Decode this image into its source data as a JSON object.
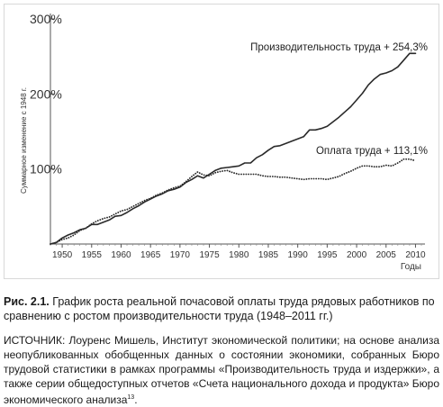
{
  "chart_data": {
    "type": "line",
    "ylabel": "Суммарное изменение с 1948 г.",
    "xlabel": "Годы",
    "xlim": [
      1948,
      2011
    ],
    "ylim": [
      0,
      300
    ],
    "x_ticks": [
      1950,
      1955,
      1960,
      1965,
      1970,
      1975,
      1980,
      1985,
      1990,
      1995,
      2000,
      2005,
      2010
    ],
    "y_ticks": [
      {
        "value": 100,
        "label": "100%"
      },
      {
        "value": 200,
        "label": "200%"
      },
      {
        "value": 300,
        "label": "300%"
      }
    ],
    "grid": false,
    "series": [
      {
        "style": "solid",
        "color": "#2a2a2a",
        "annotation": "Производительность труда + 254,3%",
        "points": [
          [
            1948,
            0
          ],
          [
            1949,
            2
          ],
          [
            1950,
            8
          ],
          [
            1951,
            12
          ],
          [
            1952,
            15
          ],
          [
            1953,
            19
          ],
          [
            1954,
            21
          ],
          [
            1955,
            26
          ],
          [
            1956,
            26
          ],
          [
            1957,
            29
          ],
          [
            1958,
            32
          ],
          [
            1959,
            37
          ],
          [
            1960,
            38
          ],
          [
            1961,
            42
          ],
          [
            1962,
            47
          ],
          [
            1963,
            51
          ],
          [
            1964,
            56
          ],
          [
            1965,
            60
          ],
          [
            1966,
            64
          ],
          [
            1967,
            67
          ],
          [
            1968,
            71
          ],
          [
            1969,
            73
          ],
          [
            1970,
            76
          ],
          [
            1971,
            82
          ],
          [
            1972,
            86
          ],
          [
            1973,
            91
          ],
          [
            1974,
            88
          ],
          [
            1975,
            93
          ],
          [
            1976,
            98
          ],
          [
            1977,
            101
          ],
          [
            1978,
            102
          ],
          [
            1979,
            103
          ],
          [
            1980,
            104
          ],
          [
            1981,
            108
          ],
          [
            1982,
            108
          ],
          [
            1983,
            115
          ],
          [
            1984,
            119
          ],
          [
            1985,
            125
          ],
          [
            1986,
            130
          ],
          [
            1987,
            131
          ],
          [
            1988,
            134
          ],
          [
            1989,
            137
          ],
          [
            1990,
            140
          ],
          [
            1991,
            143
          ],
          [
            1992,
            152
          ],
          [
            1993,
            152
          ],
          [
            1994,
            154
          ],
          [
            1995,
            157
          ],
          [
            1996,
            163
          ],
          [
            1997,
            169
          ],
          [
            1998,
            176
          ],
          [
            1999,
            183
          ],
          [
            2000,
            192
          ],
          [
            2001,
            201
          ],
          [
            2002,
            212
          ],
          [
            2003,
            220
          ],
          [
            2004,
            226
          ],
          [
            2005,
            228
          ],
          [
            2006,
            231
          ],
          [
            2007,
            236
          ],
          [
            2008,
            245
          ],
          [
            2009,
            254
          ],
          [
            2010,
            254
          ]
        ]
      },
      {
        "style": "dotted",
        "color": "#2a2a2a",
        "annotation": "Оплата труда + 113,1%",
        "points": [
          [
            1948,
            0
          ],
          [
            1949,
            2
          ],
          [
            1950,
            6
          ],
          [
            1951,
            8
          ],
          [
            1952,
            12
          ],
          [
            1953,
            18
          ],
          [
            1954,
            21
          ],
          [
            1955,
            27
          ],
          [
            1956,
            31
          ],
          [
            1957,
            34
          ],
          [
            1958,
            36
          ],
          [
            1959,
            40
          ],
          [
            1960,
            44
          ],
          [
            1961,
            46
          ],
          [
            1962,
            50
          ],
          [
            1963,
            54
          ],
          [
            1964,
            58
          ],
          [
            1965,
            61
          ],
          [
            1966,
            65
          ],
          [
            1967,
            68
          ],
          [
            1968,
            72
          ],
          [
            1969,
            75
          ],
          [
            1970,
            77
          ],
          [
            1971,
            83
          ],
          [
            1972,
            90
          ],
          [
            1973,
            96
          ],
          [
            1974,
            92
          ],
          [
            1975,
            91
          ],
          [
            1976,
            95
          ],
          [
            1977,
            97
          ],
          [
            1978,
            98
          ],
          [
            1979,
            95
          ],
          [
            1980,
            93
          ],
          [
            1981,
            93
          ],
          [
            1982,
            93
          ],
          [
            1983,
            93
          ],
          [
            1984,
            91
          ],
          [
            1985,
            90
          ],
          [
            1986,
            90
          ],
          [
            1987,
            89
          ],
          [
            1988,
            89
          ],
          [
            1989,
            88
          ],
          [
            1990,
            87
          ],
          [
            1991,
            86
          ],
          [
            1992,
            87
          ],
          [
            1993,
            87
          ],
          [
            1994,
            87
          ],
          [
            1995,
            86
          ],
          [
            1996,
            88
          ],
          [
            1997,
            90
          ],
          [
            1998,
            94
          ],
          [
            1999,
            97
          ],
          [
            2000,
            101
          ],
          [
            2001,
            104
          ],
          [
            2002,
            104
          ],
          [
            2003,
            103
          ],
          [
            2004,
            103
          ],
          [
            2005,
            105
          ],
          [
            2006,
            104
          ],
          [
            2007,
            108
          ],
          [
            2008,
            113
          ],
          [
            2009,
            113
          ],
          [
            2010,
            111
          ]
        ]
      }
    ]
  },
  "caption": {
    "label": "Рис. 2.1.",
    "text": " График роста реальной почасовой оплаты труда рядовых работников по сравнению с ростом производительности труда (1948–2011 гг.)"
  },
  "source": {
    "text": "ИСТОЧНИК: Лоуренс Мишель, Институт экономической политики; на основе анализа неопубликованных обобщенных данных о состоянии экономики, собранных Бюро трудовой статистики в рамках программы «Производительность труда и издержки», а также серии общедоступных отчетов «Счета национального дохода и продукта» Бюро экономического анализа",
    "footnote": "13",
    "tail": "."
  }
}
